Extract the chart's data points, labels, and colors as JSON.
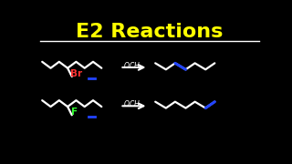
{
  "title": "E2 Reactions",
  "title_color": "#FFFF00",
  "bg_color": "#000000",
  "line_color": "#FFFFFF",
  "br_color": "#FF3333",
  "f_color": "#33FF33",
  "blue_color": "#2244FF",
  "och3_color": "#FFFFFF",
  "underline_color": "#FFFFFF",
  "arrow_color": "#FFFFFF",
  "title_fontsize": 16,
  "lw": 1.6
}
